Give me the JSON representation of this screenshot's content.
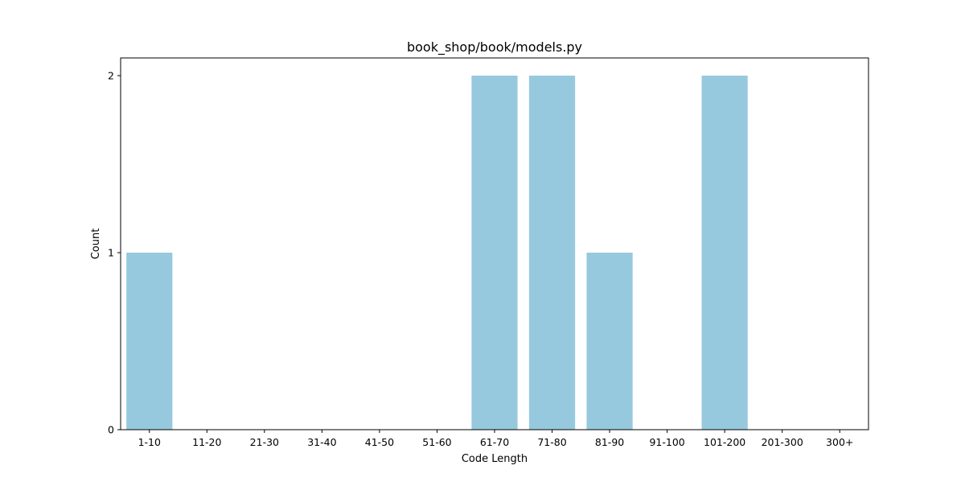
{
  "chart_data": {
    "type": "bar",
    "title": "book_shop/book/models.py",
    "xlabel": "Code Length",
    "ylabel": "Count",
    "categories": [
      "1-10",
      "11-20",
      "21-30",
      "31-40",
      "41-50",
      "51-60",
      "61-70",
      "71-80",
      "81-90",
      "91-100",
      "101-200",
      "201-300",
      "300+"
    ],
    "values": [
      1,
      0,
      0,
      0,
      0,
      0,
      2,
      2,
      1,
      0,
      2,
      0,
      0
    ],
    "yticks": [
      0,
      1,
      2
    ],
    "ylim": [
      0,
      2.1
    ],
    "grid": false,
    "legend": "none",
    "bar_color": "#96c9de"
  }
}
